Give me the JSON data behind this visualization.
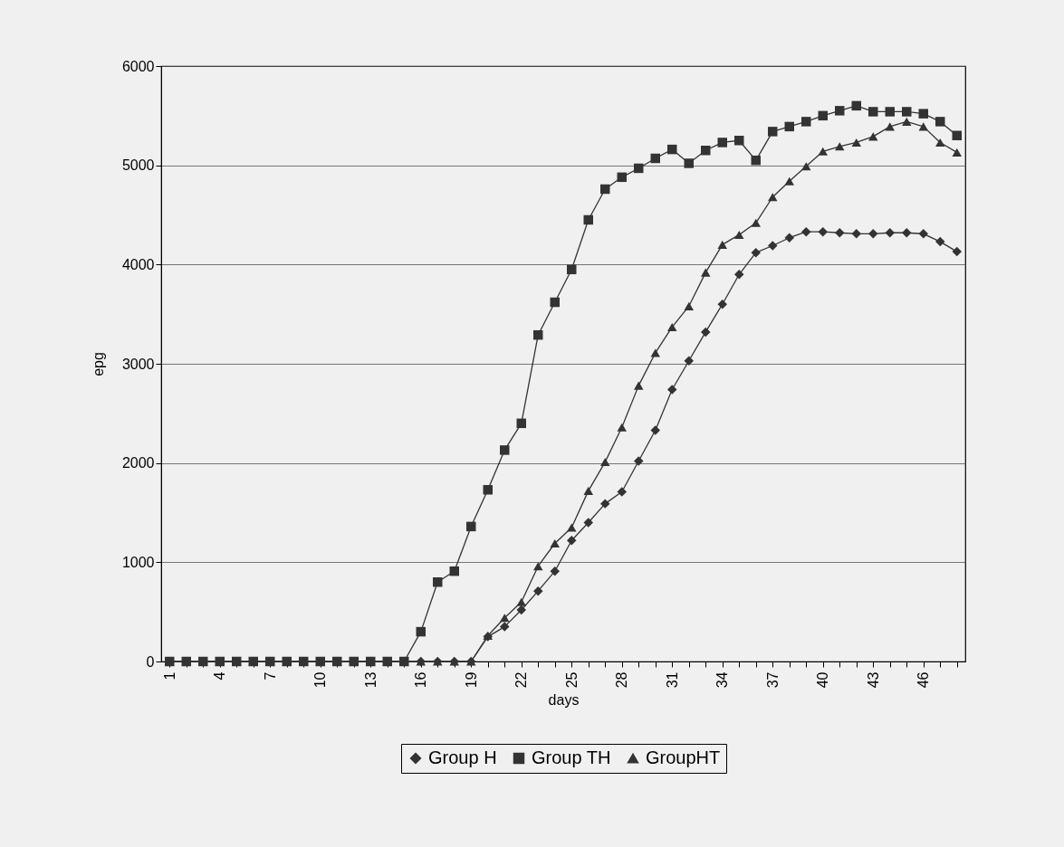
{
  "chart_data": {
    "type": "line",
    "xlabel": "days",
    "ylabel": "epg",
    "categories": [
      "1",
      null,
      null,
      "4",
      null,
      null,
      "7",
      null,
      null,
      "10",
      null,
      null,
      "13",
      null,
      null,
      "16",
      null,
      null,
      "19",
      null,
      null,
      "22",
      null,
      null,
      "25",
      null,
      null,
      "28",
      null,
      null,
      "31",
      null,
      null,
      "34",
      null,
      null,
      "37",
      null,
      null,
      "40",
      null,
      null,
      "43",
      null,
      null,
      "46",
      null,
      null
    ],
    "ylim": [
      0,
      6000
    ],
    "yticks": [
      0,
      1000,
      2000,
      3000,
      4000,
      5000,
      6000
    ],
    "grid": "y",
    "legend": "bottom",
    "line_style": "solid",
    "series": [
      {
        "name": "Group H",
        "color": "#333333",
        "marker": "diamond",
        "values": [
          0,
          0,
          0,
          0,
          0,
          0,
          0,
          0,
          0,
          0,
          0,
          0,
          0,
          0,
          0,
          0,
          0,
          0,
          0,
          250,
          350,
          520,
          710,
          910,
          1220,
          1400,
          1590,
          1710,
          2020,
          2330,
          2740,
          3030,
          3320,
          3600,
          3900,
          4120,
          4190,
          4270,
          4330,
          4330,
          4320,
          4310,
          4310,
          4320,
          4320,
          4310,
          4230,
          4130
        ]
      },
      {
        "name": "Group TH",
        "color": "#333333",
        "marker": "square",
        "values": [
          0,
          0,
          0,
          0,
          0,
          0,
          0,
          0,
          0,
          0,
          0,
          0,
          0,
          0,
          0,
          300,
          800,
          910,
          1360,
          1730,
          2130,
          2400,
          3290,
          3620,
          3950,
          4450,
          4760,
          4880,
          4970,
          5070,
          5160,
          5020,
          5150,
          5230,
          5250,
          5050,
          5340,
          5390,
          5440,
          5500,
          5550,
          5600,
          5540,
          5540,
          5540,
          5520,
          5440,
          5300
        ]
      },
      {
        "name": "GroupHT",
        "color": "#333333",
        "marker": "triangle",
        "values": [
          0,
          0,
          0,
          0,
          0,
          0,
          0,
          0,
          0,
          0,
          0,
          0,
          0,
          0,
          0,
          0,
          0,
          0,
          0,
          260,
          440,
          600,
          960,
          1190,
          1350,
          1720,
          2010,
          2360,
          2780,
          3110,
          3370,
          3580,
          3920,
          4200,
          4300,
          4420,
          4680,
          4840,
          4990,
          5140,
          5190,
          5230,
          5290,
          5390,
          5440,
          5390,
          5230,
          5130
        ]
      }
    ]
  }
}
